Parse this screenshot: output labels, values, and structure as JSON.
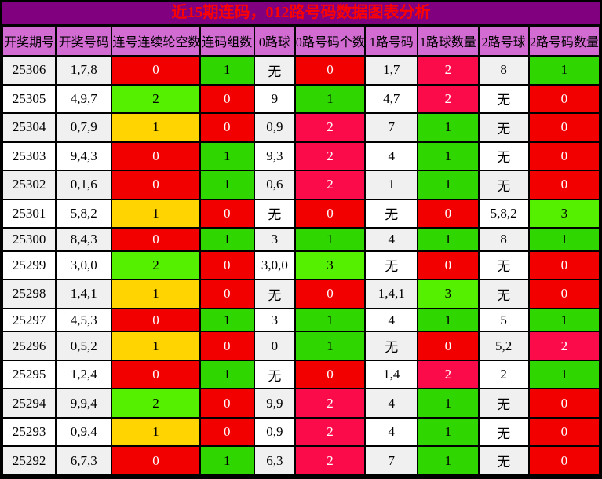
{
  "title": "近15期连码，012路号码数据图表分析",
  "palette": {
    "title_bg": "#800080",
    "title_text": "#ff0000",
    "header_bg": "#d26bd2",
    "row_alt_bg": "#f0f0f0",
    "row_bg": "#ffffff",
    "red": "#f20000",
    "crimson": "#fb0b4a",
    "green": "#2fd600",
    "bright_green": "#55f000",
    "yellow": "#ffd400",
    "grid": "#000000"
  },
  "chart_data": {
    "type": "table",
    "title": "近15期连码，012路号码数据图表分析",
    "columns": [
      "开奖期号",
      "开奖号码",
      "连号连续轮空数",
      "连码组数",
      "0路球",
      "0路号码个数",
      "1路号码",
      "1路球数量",
      "2路号球",
      "2路号码数量"
    ],
    "rows": [
      {
        "cells": [
          {
            "t": "25306"
          },
          {
            "t": "1,7,8"
          },
          {
            "t": "0",
            "c": "red"
          },
          {
            "t": "1",
            "c": "green"
          },
          {
            "t": "无"
          },
          {
            "t": "0",
            "c": "red"
          },
          {
            "t": "1,7"
          },
          {
            "t": "2",
            "c": "crimson"
          },
          {
            "t": "8"
          },
          {
            "t": "1",
            "c": "green"
          }
        ]
      },
      {
        "cells": [
          {
            "t": "25305"
          },
          {
            "t": "4,9,7"
          },
          {
            "t": "2",
            "c": "bright_green"
          },
          {
            "t": "0",
            "c": "red"
          },
          {
            "t": "9"
          },
          {
            "t": "1",
            "c": "green"
          },
          {
            "t": "4,7"
          },
          {
            "t": "2",
            "c": "crimson"
          },
          {
            "t": "无"
          },
          {
            "t": "0",
            "c": "red"
          }
        ]
      },
      {
        "cells": [
          {
            "t": "25304"
          },
          {
            "t": "0,7,9"
          },
          {
            "t": "1",
            "c": "yellow"
          },
          {
            "t": "0",
            "c": "red"
          },
          {
            "t": "0,9"
          },
          {
            "t": "2",
            "c": "crimson"
          },
          {
            "t": "7"
          },
          {
            "t": "1",
            "c": "green"
          },
          {
            "t": "无"
          },
          {
            "t": "0",
            "c": "red"
          }
        ]
      },
      {
        "cells": [
          {
            "t": "25303"
          },
          {
            "t": "9,4,3"
          },
          {
            "t": "0",
            "c": "red"
          },
          {
            "t": "1",
            "c": "green"
          },
          {
            "t": "9,3"
          },
          {
            "t": "2",
            "c": "crimson"
          },
          {
            "t": "4"
          },
          {
            "t": "1",
            "c": "green"
          },
          {
            "t": "无"
          },
          {
            "t": "0",
            "c": "red"
          }
        ]
      },
      {
        "cells": [
          {
            "t": "25302"
          },
          {
            "t": "0,1,6"
          },
          {
            "t": "0",
            "c": "red"
          },
          {
            "t": "1",
            "c": "green"
          },
          {
            "t": "0,6"
          },
          {
            "t": "2",
            "c": "crimson"
          },
          {
            "t": "1"
          },
          {
            "t": "1",
            "c": "green"
          },
          {
            "t": "无"
          },
          {
            "t": "0",
            "c": "red"
          }
        ]
      },
      {
        "cells": [
          {
            "t": "25301"
          },
          {
            "t": "5,8,2"
          },
          {
            "t": "1",
            "c": "yellow"
          },
          {
            "t": "0",
            "c": "red"
          },
          {
            "t": "无"
          },
          {
            "t": "0",
            "c": "red"
          },
          {
            "t": "无"
          },
          {
            "t": "0",
            "c": "red"
          },
          {
            "t": "5,8,2"
          },
          {
            "t": "3",
            "c": "bright_green"
          }
        ]
      },
      {
        "cells": [
          {
            "t": "25300"
          },
          {
            "t": "8,4,3"
          },
          {
            "t": "0",
            "c": "red"
          },
          {
            "t": "1",
            "c": "green"
          },
          {
            "t": "3"
          },
          {
            "t": "1",
            "c": "green"
          },
          {
            "t": "4"
          },
          {
            "t": "1",
            "c": "green"
          },
          {
            "t": "8"
          },
          {
            "t": "1",
            "c": "green"
          }
        ]
      },
      {
        "cells": [
          {
            "t": "25299"
          },
          {
            "t": "3,0,0"
          },
          {
            "t": "2",
            "c": "bright_green"
          },
          {
            "t": "0",
            "c": "red"
          },
          {
            "t": "3,0,0"
          },
          {
            "t": "3",
            "c": "bright_green"
          },
          {
            "t": "无"
          },
          {
            "t": "0",
            "c": "red"
          },
          {
            "t": "无"
          },
          {
            "t": "0",
            "c": "red"
          }
        ]
      },
      {
        "cells": [
          {
            "t": "25298"
          },
          {
            "t": "1,4,1"
          },
          {
            "t": "1",
            "c": "yellow"
          },
          {
            "t": "0",
            "c": "red"
          },
          {
            "t": "无"
          },
          {
            "t": "0",
            "c": "red"
          },
          {
            "t": "1,4,1"
          },
          {
            "t": "3",
            "c": "bright_green"
          },
          {
            "t": "无"
          },
          {
            "t": "0",
            "c": "red"
          }
        ]
      },
      {
        "cells": [
          {
            "t": "25297"
          },
          {
            "t": "4,5,3"
          },
          {
            "t": "0",
            "c": "red"
          },
          {
            "t": "1",
            "c": "green"
          },
          {
            "t": "3"
          },
          {
            "t": "1",
            "c": "green"
          },
          {
            "t": "4"
          },
          {
            "t": "1",
            "c": "green"
          },
          {
            "t": "5"
          },
          {
            "t": "1",
            "c": "green"
          }
        ]
      },
      {
        "cells": [
          {
            "t": "25296"
          },
          {
            "t": "0,5,2"
          },
          {
            "t": "1",
            "c": "yellow"
          },
          {
            "t": "0",
            "c": "red"
          },
          {
            "t": "0"
          },
          {
            "t": "1",
            "c": "green"
          },
          {
            "t": "无"
          },
          {
            "t": "0",
            "c": "red"
          },
          {
            "t": "5,2"
          },
          {
            "t": "2",
            "c": "crimson"
          }
        ]
      },
      {
        "cells": [
          {
            "t": "25295"
          },
          {
            "t": "1,2,4"
          },
          {
            "t": "0",
            "c": "red"
          },
          {
            "t": "1",
            "c": "green"
          },
          {
            "t": "无"
          },
          {
            "t": "0",
            "c": "red"
          },
          {
            "t": "1,4"
          },
          {
            "t": "2",
            "c": "crimson"
          },
          {
            "t": "2"
          },
          {
            "t": "1",
            "c": "green"
          }
        ]
      },
      {
        "cells": [
          {
            "t": "25294"
          },
          {
            "t": "9,9,4"
          },
          {
            "t": "2",
            "c": "bright_green"
          },
          {
            "t": "0",
            "c": "red"
          },
          {
            "t": "9,9"
          },
          {
            "t": "2",
            "c": "crimson"
          },
          {
            "t": "4"
          },
          {
            "t": "1",
            "c": "green"
          },
          {
            "t": "无"
          },
          {
            "t": "0",
            "c": "red"
          }
        ]
      },
      {
        "cells": [
          {
            "t": "25293"
          },
          {
            "t": "0,9,4"
          },
          {
            "t": "1",
            "c": "yellow"
          },
          {
            "t": "0",
            "c": "red"
          },
          {
            "t": "0,9"
          },
          {
            "t": "2",
            "c": "crimson"
          },
          {
            "t": "4"
          },
          {
            "t": "1",
            "c": "green"
          },
          {
            "t": "无"
          },
          {
            "t": "0",
            "c": "red"
          }
        ]
      },
      {
        "cells": [
          {
            "t": "25292"
          },
          {
            "t": "6,7,3"
          },
          {
            "t": "0",
            "c": "red"
          },
          {
            "t": "1",
            "c": "green"
          },
          {
            "t": "6,3"
          },
          {
            "t": "2",
            "c": "crimson"
          },
          {
            "t": "7"
          },
          {
            "t": "1",
            "c": "green"
          },
          {
            "t": "无"
          },
          {
            "t": "0",
            "c": "red"
          }
        ]
      }
    ]
  }
}
